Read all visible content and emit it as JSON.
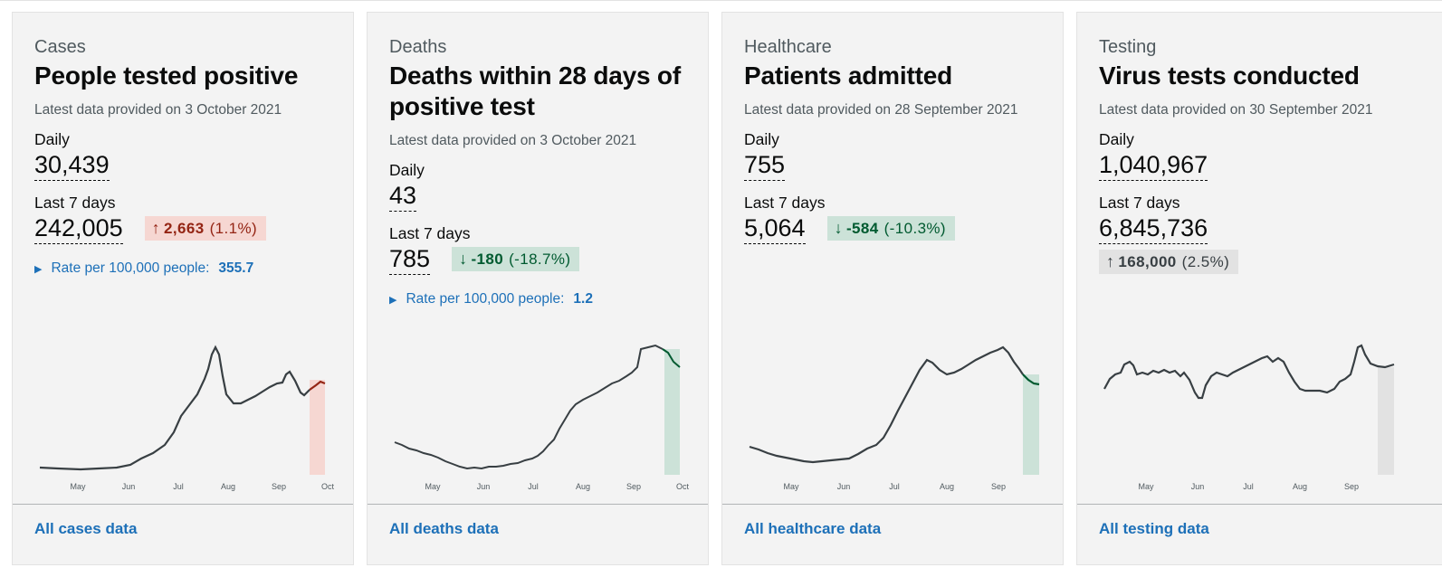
{
  "cards": [
    {
      "caption": "Cases",
      "heading": "People tested positive",
      "latest": "Latest data provided on 3 October 2021",
      "daily_label": "Daily",
      "daily_value": "30,439",
      "week_label": "Last 7 days",
      "week_value": "242,005",
      "change_arrow": "↑",
      "change_value": "2,663",
      "change_pct": "(1.1%)",
      "rate_label": "Rate per 100,000 people:",
      "rate_value": "355.7",
      "link": "All cases data",
      "ticks": [
        "May",
        "Jun",
        "Jul",
        "Aug",
        "Sep",
        "Oct"
      ],
      "colors": {
        "highlight": "#f6d7d2",
        "line_end": "#942514"
      }
    },
    {
      "caption": "Deaths",
      "heading": "Deaths within 28 days of positive test",
      "latest": "Latest data provided on 3 October 2021",
      "daily_label": "Daily",
      "daily_value": "43",
      "week_label": "Last 7 days",
      "week_value": "785",
      "change_arrow": "↓",
      "change_value": "-180",
      "change_pct": "(-18.7%)",
      "rate_label": "Rate per 100,000 people:",
      "rate_value": "1.2",
      "link": "All deaths data",
      "ticks": [
        "May",
        "Jun",
        "Jul",
        "Aug",
        "Sep",
        "Oct"
      ],
      "colors": {
        "highlight": "#cce2d8",
        "line_end": "#005a30"
      }
    },
    {
      "caption": "Healthcare",
      "heading": "Patients admitted",
      "latest": "Latest data provided on 28 September 2021",
      "daily_label": "Daily",
      "daily_value": "755",
      "week_label": "Last 7 days",
      "week_value": "5,064",
      "change_arrow": "↓",
      "change_value": "-584",
      "change_pct": "(-10.3%)",
      "link": "All healthcare data",
      "ticks": [
        "May",
        "Jun",
        "Jul",
        "Aug",
        "Sep"
      ],
      "colors": {
        "highlight": "#cce2d8",
        "line_end": "#005a30"
      }
    },
    {
      "caption": "Testing",
      "heading": "Virus tests conducted",
      "latest": "Latest data provided on 30 September 2021",
      "daily_label": "Daily",
      "daily_value": "1,040,967",
      "week_label": "Last 7 days",
      "week_value": "6,845,736",
      "change_arrow": "↑",
      "change_value": "168,000",
      "change_pct": "(2.5%)",
      "link": "All testing data",
      "ticks": [
        "May",
        "Jun",
        "Jul",
        "Aug",
        "Sep"
      ],
      "colors": {
        "highlight": "#e2e2e2",
        "line_end": "#383f43"
      }
    }
  ]
}
